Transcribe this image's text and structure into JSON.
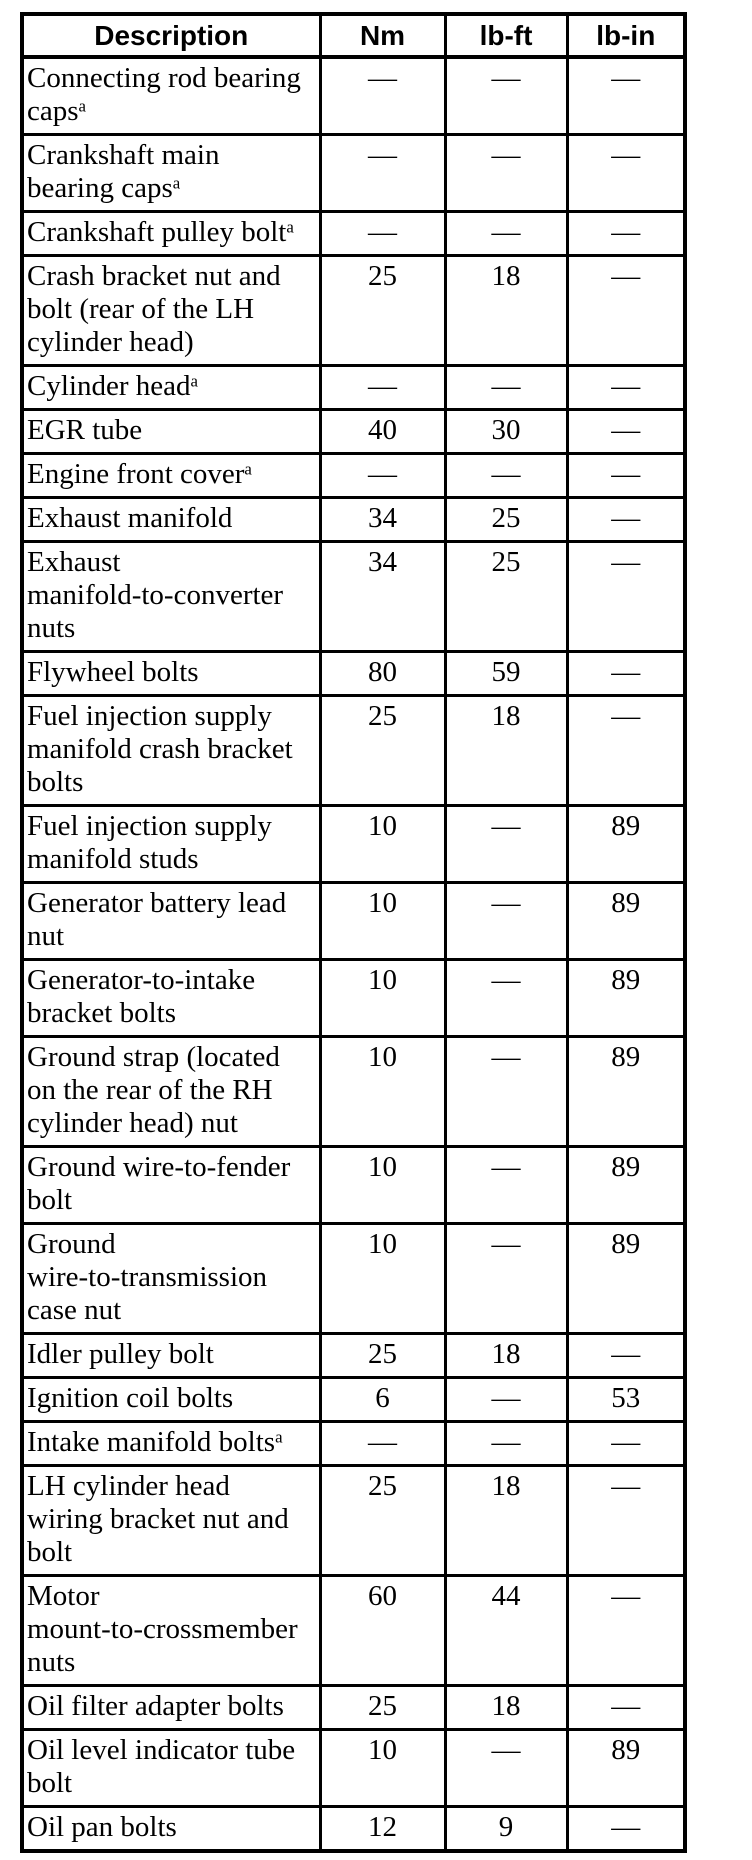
{
  "meta": {
    "background_color": "#ffffff",
    "border_color": "#000000",
    "text_color": "#000000"
  },
  "table": {
    "columns": [
      "Description",
      "Nm",
      "lb-ft",
      "lb-in"
    ],
    "footnote_marker": "a",
    "rows": [
      {
        "description": "Connecting rod bearing\ncaps",
        "sup": "a",
        "nm": "—",
        "lbft": "—",
        "lbin": "—"
      },
      {
        "description": "Crankshaft main\nbearing caps",
        "sup": "a",
        "nm": "—",
        "lbft": "—",
        "lbin": "—"
      },
      {
        "description": "Crankshaft pulley bolt",
        "sup": "a",
        "nm": "—",
        "lbft": "—",
        "lbin": "—"
      },
      {
        "description": "Crash bracket nut and\nbolt (rear of the LH\ncylinder head)",
        "sup": "",
        "nm": "25",
        "lbft": "18",
        "lbin": "—"
      },
      {
        "description": "Cylinder head",
        "sup": "a",
        "nm": "—",
        "lbft": "—",
        "lbin": "—"
      },
      {
        "description": "EGR tube",
        "sup": "",
        "nm": "40",
        "lbft": "30",
        "lbin": "—"
      },
      {
        "description": "Engine front cover",
        "sup": "a",
        "nm": "—",
        "lbft": "—",
        "lbin": "—"
      },
      {
        "description": "Exhaust manifold",
        "sup": "",
        "nm": "34",
        "lbft": "25",
        "lbin": "—"
      },
      {
        "description": "Exhaust\nmanifold-to-converter\nnuts",
        "sup": "",
        "nm": "34",
        "lbft": "25",
        "lbin": "—"
      },
      {
        "description": "Flywheel bolts",
        "sup": "",
        "nm": "80",
        "lbft": "59",
        "lbin": "—"
      },
      {
        "description": "Fuel injection supply\nmanifold crash bracket\nbolts",
        "sup": "",
        "nm": "25",
        "lbft": "18",
        "lbin": "—"
      },
      {
        "description": "Fuel injection supply\nmanifold studs",
        "sup": "",
        "nm": "10",
        "lbft": "—",
        "lbin": "89"
      },
      {
        "description": "Generator battery lead\nnut",
        "sup": "",
        "nm": "10",
        "lbft": "—",
        "lbin": "89"
      },
      {
        "description": "Generator-to-intake\nbracket bolts",
        "sup": "",
        "nm": "10",
        "lbft": "—",
        "lbin": "89"
      },
      {
        "description": "Ground strap (located\non the rear of the RH\ncylinder head) nut",
        "sup": "",
        "nm": "10",
        "lbft": "—",
        "lbin": "89"
      },
      {
        "description": "Ground wire-to-fender\nbolt",
        "sup": "",
        "nm": "10",
        "lbft": "—",
        "lbin": "89"
      },
      {
        "description": "Ground\nwire-to-transmission\ncase nut",
        "sup": "",
        "nm": "10",
        "lbft": "—",
        "lbin": "89"
      },
      {
        "description": "Idler pulley bolt",
        "sup": "",
        "nm": "25",
        "lbft": "18",
        "lbin": "—"
      },
      {
        "description": "Ignition coil bolts",
        "sup": "",
        "nm": "6",
        "lbft": "—",
        "lbin": "53"
      },
      {
        "description": "Intake manifold bolts",
        "sup": "a",
        "nm": "—",
        "lbft": "—",
        "lbin": "—"
      },
      {
        "description": "LH cylinder head\nwiring bracket nut and\nbolt",
        "sup": "",
        "nm": "25",
        "lbft": "18",
        "lbin": "—"
      },
      {
        "description": "Motor\nmount-to-crossmember\nnuts",
        "sup": "",
        "nm": "60",
        "lbft": "44",
        "lbin": "—"
      },
      {
        "description": "Oil filter adapter bolts",
        "sup": "",
        "nm": "25",
        "lbft": "18",
        "lbin": "—"
      },
      {
        "description": "Oil level indicator tube\nbolt",
        "sup": "",
        "nm": "10",
        "lbft": "—",
        "lbin": "89"
      },
      {
        "description": "Oil pan bolts",
        "sup": "",
        "nm": "12",
        "lbft": "9",
        "lbin": "—"
      }
    ]
  }
}
